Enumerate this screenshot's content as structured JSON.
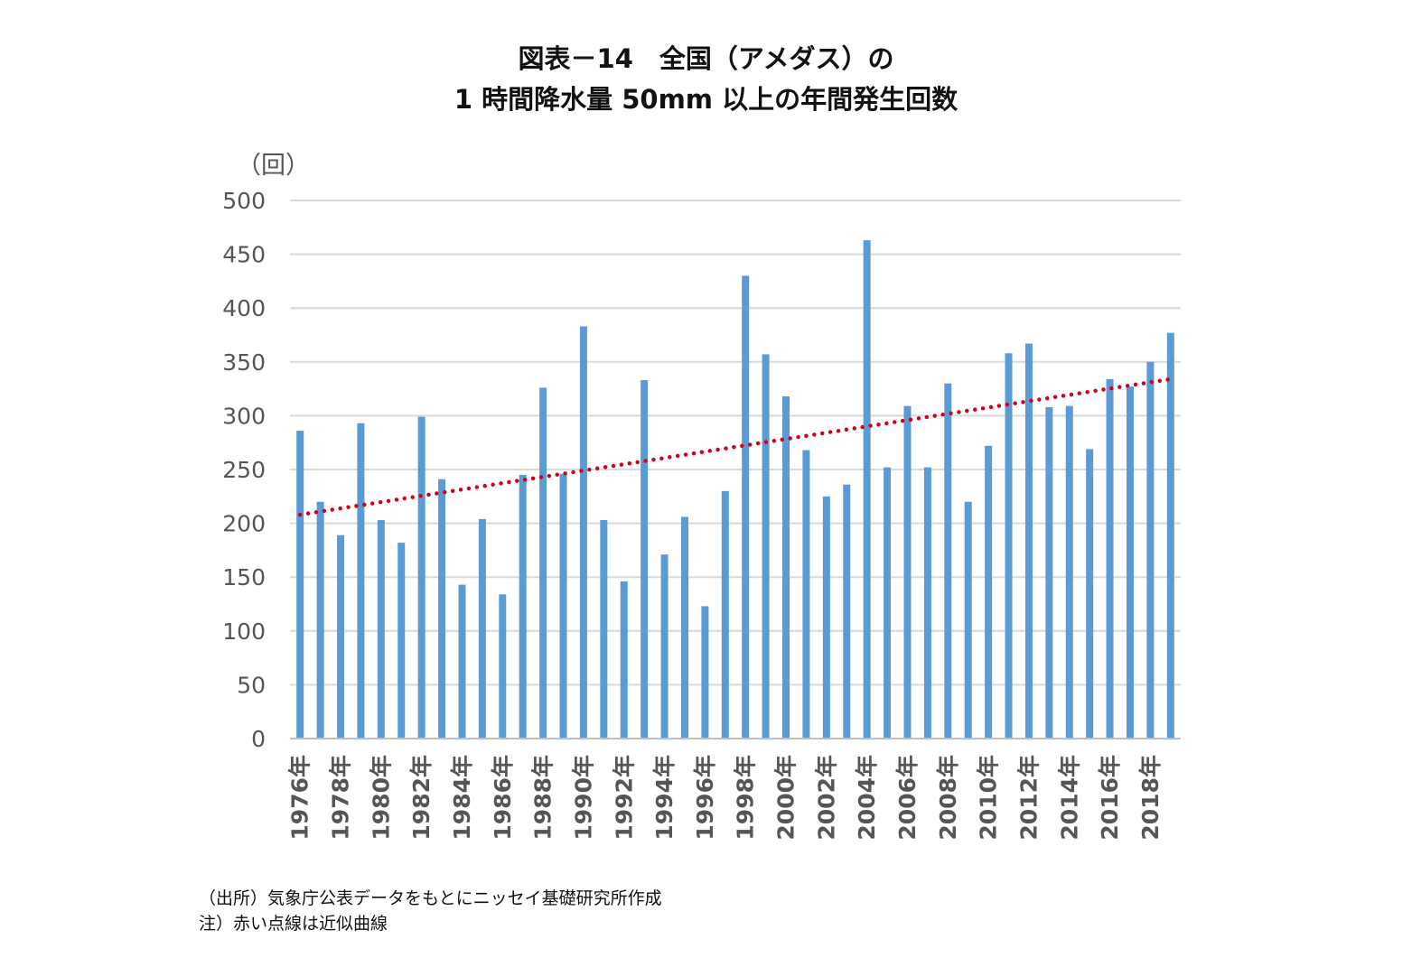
{
  "header": {
    "title_line1": "図表－14　全国（アメダス）の",
    "title_line2": "1 時間降水量 50mm 以上の年間発生回数"
  },
  "notes": {
    "source": "（出所）気象庁公表データをもとにニッセイ基礎研究所作成",
    "note": "注）赤い点線は近似曲線"
  },
  "colors": {
    "bar": "#5b9bd5",
    "trend": "#d0021b",
    "grid": "#d9d9d9",
    "tick_text": "#555555"
  },
  "chart_data": {
    "type": "bar",
    "title": "図表－14　全国（アメダス）の 1 時間降水量 50mm 以上の年間発生回数",
    "ylabel": "（回）",
    "xlabel": "",
    "ylim": [
      0,
      500
    ],
    "yticks": [
      0,
      50,
      100,
      150,
      200,
      250,
      300,
      350,
      400,
      450,
      500
    ],
    "grid": true,
    "categories": [
      "1976年",
      "1977年",
      "1978年",
      "1979年",
      "1980年",
      "1981年",
      "1982年",
      "1983年",
      "1984年",
      "1985年",
      "1986年",
      "1987年",
      "1988年",
      "1989年",
      "1990年",
      "1991年",
      "1992年",
      "1993年",
      "1994年",
      "1995年",
      "1996年",
      "1997年",
      "1998年",
      "1999年",
      "2000年",
      "2001年",
      "2002年",
      "2003年",
      "2004年",
      "2005年",
      "2006年",
      "2007年",
      "2008年",
      "2009年",
      "2010年",
      "2011年",
      "2012年",
      "2013年",
      "2014年",
      "2015年",
      "2016年",
      "2017年",
      "2018年",
      "2019年"
    ],
    "xtick_labels": [
      "1976年",
      "1978年",
      "1980年",
      "1982年",
      "1984年",
      "1986年",
      "1988年",
      "1990年",
      "1992年",
      "1994年",
      "1996年",
      "1998年",
      "2000年",
      "2002年",
      "2004年",
      "2006年",
      "2008年",
      "2010年",
      "2012年",
      "2014年",
      "2016年",
      "2018年"
    ],
    "values": [
      286,
      220,
      189,
      293,
      203,
      182,
      299,
      241,
      143,
      204,
      134,
      245,
      326,
      246,
      383,
      203,
      146,
      333,
      171,
      206,
      123,
      230,
      430,
      357,
      318,
      268,
      225,
      236,
      463,
      252,
      309,
      252,
      330,
      220,
      272,
      358,
      367,
      308,
      309,
      269,
      334,
      327,
      350,
      377
    ],
    "trendline": {
      "style": "dotted",
      "start_value": 208,
      "end_value": 334
    }
  }
}
